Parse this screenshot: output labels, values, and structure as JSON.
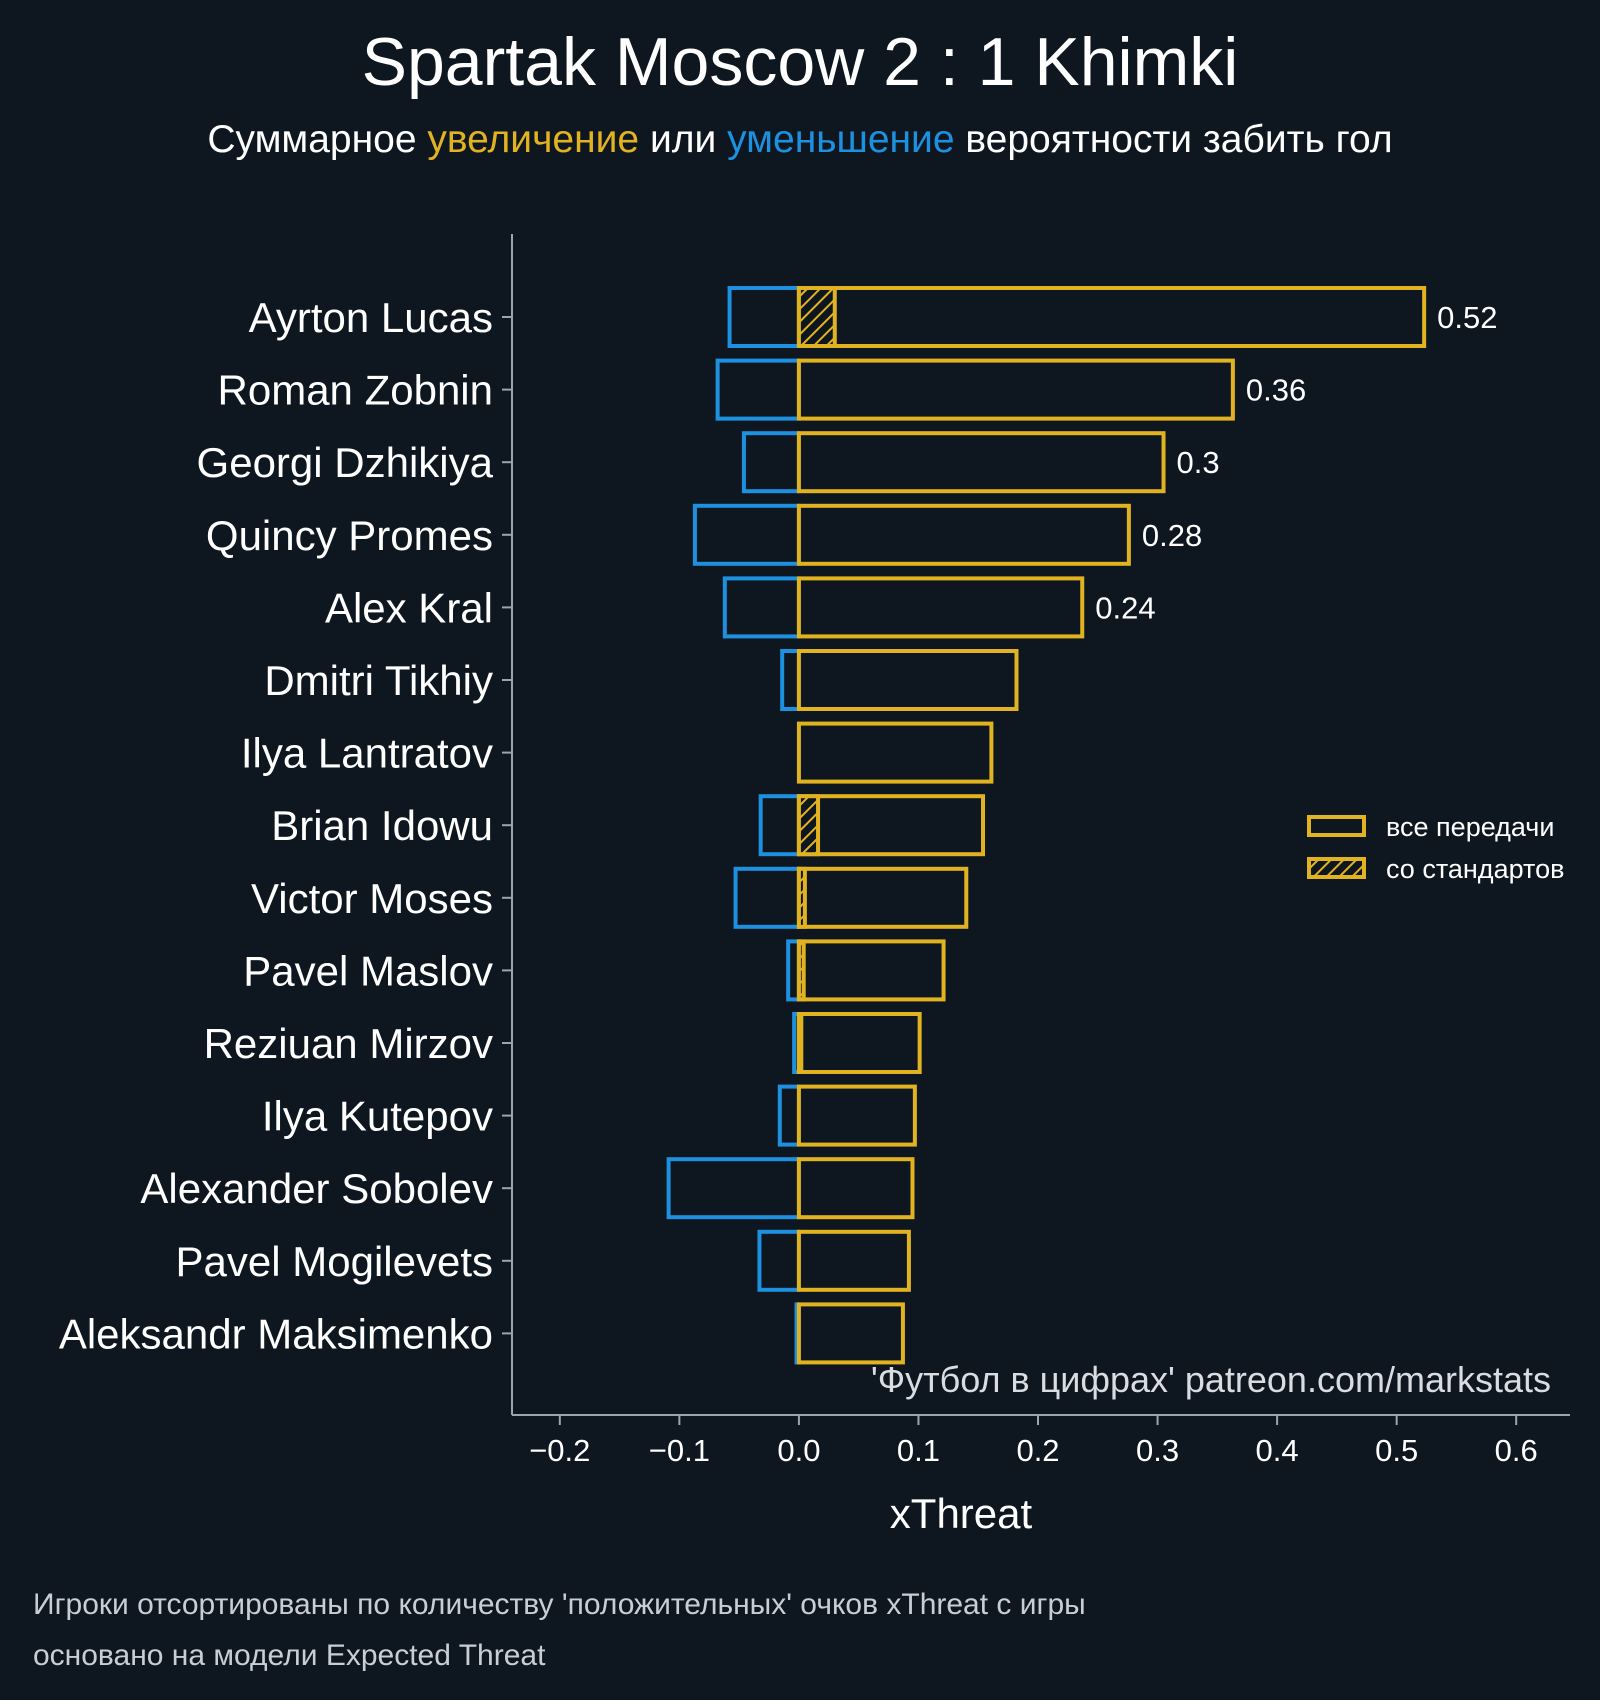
{
  "chart_data": {
    "type": "bar",
    "orientation": "horizontal",
    "title": "Spartak Moscow 2 : 1 Khimki",
    "subtitle": {
      "prefix": "Суммарное ",
      "increase": "увеличение",
      "middle": " или ",
      "decrease": "уменьшение",
      "suffix": " вероятности забить гол"
    },
    "xlabel": "xThreat",
    "xlim": [
      -0.24,
      0.645
    ],
    "xticks": [
      -0.2,
      -0.1,
      0.0,
      0.1,
      0.2,
      0.3,
      0.4,
      0.5,
      0.6
    ],
    "xtick_labels": [
      "−0.2",
      "−0.1",
      "0.0",
      "0.1",
      "0.2",
      "0.3",
      "0.4",
      "0.5",
      "0.6"
    ],
    "categories": [
      "Ayrton Lucas",
      "Roman Zobnin",
      "Georgi Dzhikiya",
      "Quincy Promes",
      "Alex Kral",
      "Dmitri Tikhiy",
      "Ilya Lantratov",
      "Brian Idowu",
      "Victor Moses",
      "Pavel Maslov",
      "Reziuan Mirzov",
      "Ilya Kutepov",
      "Alexander Sobolev",
      "Pavel Mogilevets",
      "Aleksandr Maksimenko"
    ],
    "series": [
      {
        "name": "все передачи",
        "kind": "positive",
        "values": [
          0.523,
          0.363,
          0.305,
          0.276,
          0.237,
          0.182,
          0.161,
          0.154,
          0.14,
          0.121,
          0.101,
          0.097,
          0.095,
          0.092,
          0.087
        ]
      },
      {
        "name": "со стандартов",
        "kind": "set_pieces",
        "values": [
          0.03,
          0.0,
          0.0,
          0.0,
          0.0,
          0.0,
          0.0,
          0.016,
          0.005,
          0.004,
          0.002,
          0.0,
          0.0,
          0.0,
          0.0
        ]
      },
      {
        "name": "negative",
        "kind": "negative",
        "values": [
          -0.058,
          -0.068,
          -0.046,
          -0.087,
          -0.062,
          -0.014,
          0.0,
          -0.032,
          -0.053,
          -0.009,
          -0.004,
          -0.016,
          -0.109,
          -0.033,
          -0.002
        ]
      }
    ],
    "value_labels": [
      "0.52",
      "0.36",
      "0.3",
      "0.28",
      "0.24",
      "",
      "",
      "",
      "",
      "",
      "",
      "",
      "",
      "",
      ""
    ],
    "legend": {
      "position": "right",
      "items": [
        "все передачи",
        "со стандартов"
      ]
    },
    "watermark": "'Футбол в цифрах' patreon.com/markstats",
    "footnotes": [
      "Игроки отсортированы по количеству 'положительных' очков xThreat с игры",
      "основано на модели Expected Threat"
    ],
    "colors": {
      "positive": "#e2b320",
      "negative": "#1e90e0",
      "background": "#0e1720",
      "axis": "#9aa6ad"
    }
  }
}
